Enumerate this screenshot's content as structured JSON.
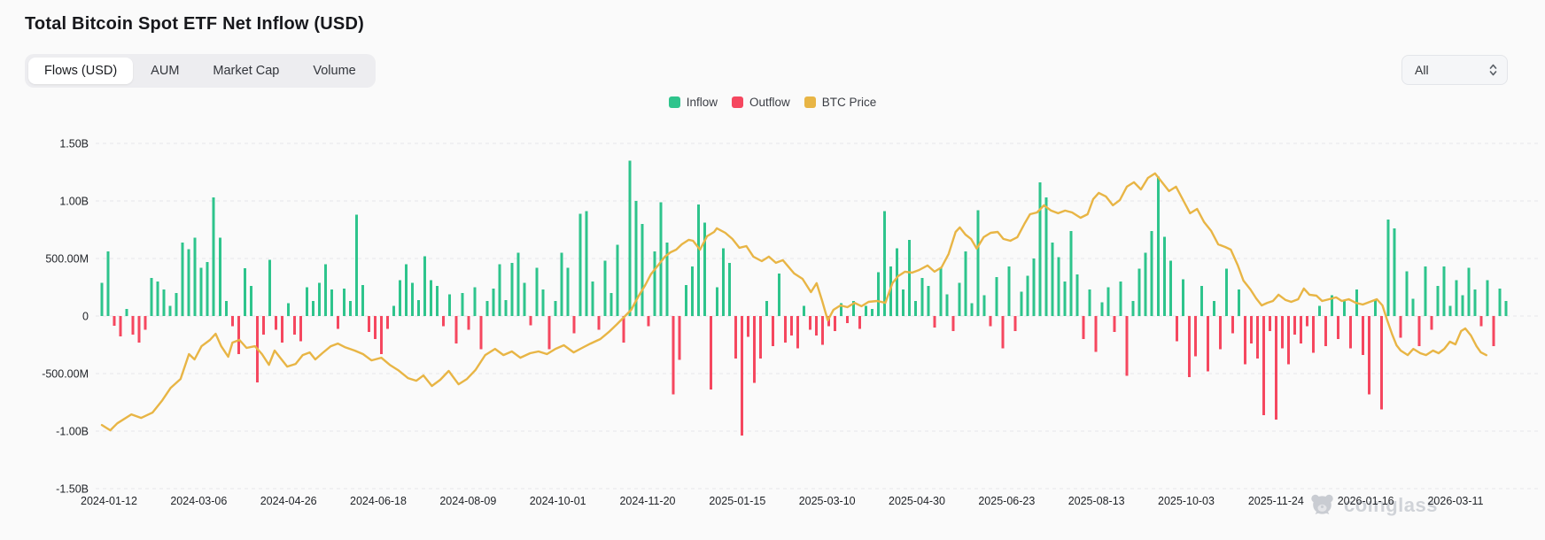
{
  "header": {
    "title": "Total Bitcoin Spot ETF Net Inflow (USD)"
  },
  "toolbar": {
    "tabs": [
      {
        "label": "Flows (USD)",
        "active": true
      },
      {
        "label": "AUM",
        "active": false
      },
      {
        "label": "Market Cap",
        "active": false
      },
      {
        "label": "Volume",
        "active": false
      }
    ],
    "range_select": {
      "value": "All",
      "icon": "unfold-chevrons-icon"
    }
  },
  "legend": [
    {
      "label": "Inflow",
      "color": "#2ec48c"
    },
    {
      "label": "Outflow",
      "color": "#f5475f"
    },
    {
      "label": "BTC Price",
      "color": "#e8b545"
    }
  ],
  "watermark": {
    "brand": "coinglass",
    "icon": "bear-icon"
  },
  "chart_data": {
    "type": "bar",
    "title": "Total Bitcoin Spot ETF Net Inflow (USD)",
    "values_unit": "millions USD",
    "grid": "dashed",
    "legend_position": "top-center",
    "y_axis": {
      "tick_labels": [
        "1.50B",
        "1.00B",
        "500.00M",
        "0",
        "-500.00M",
        "-1.00B",
        "-1.50B"
      ],
      "tick_values_m": [
        1500,
        1000,
        500,
        0,
        -500,
        -1000,
        -1500
      ],
      "range_m": [
        -1500,
        1500
      ]
    },
    "x_axis": {
      "tick_labels": [
        "2024-01-12",
        "2024-03-06",
        "2024-04-26",
        "2024-06-18",
        "2024-08-09",
        "2024-10-01",
        "2024-11-20",
        "2025-01-15",
        "2025-03-10",
        "2025-04-30",
        "2025-06-23",
        "2025-08-13",
        "2025-10-03",
        "2025-11-24",
        "2026-01-16",
        "2026-03-11"
      ]
    },
    "series": [
      {
        "name": "Inflow",
        "type": "bar",
        "color": "#2ec48c"
      },
      {
        "name": "Outflow",
        "type": "bar",
        "color": "#f5475f"
      },
      {
        "name": "BTC Price",
        "type": "line",
        "color": "#e8b545",
        "axis": "hidden-right"
      }
    ],
    "net_flows_m": [
      290,
      560,
      -85,
      -175,
      60,
      -160,
      -230,
      -120,
      330,
      300,
      230,
      90,
      200,
      640,
      580,
      680,
      420,
      470,
      1030,
      680,
      130,
      -90,
      -330,
      415,
      260,
      -575,
      -160,
      490,
      -120,
      -230,
      110,
      -160,
      -220,
      250,
      130,
      290,
      450,
      230,
      -110,
      240,
      130,
      880,
      270,
      -140,
      -200,
      -330,
      -110,
      90,
      310,
      450,
      290,
      140,
      520,
      310,
      260,
      -90,
      190,
      -240,
      200,
      -120,
      250,
      -290,
      130,
      240,
      450,
      140,
      460,
      550,
      290,
      -80,
      420,
      230,
      -290,
      130,
      550,
      420,
      -150,
      890,
      910,
      300,
      -120,
      480,
      200,
      620,
      -230,
      1350,
      1000,
      800,
      -90,
      560,
      990,
      640,
      -680,
      -380,
      270,
      430,
      970,
      810,
      -640,
      250,
      590,
      460,
      -370,
      -1040,
      -180,
      -580,
      -370,
      130,
      -260,
      370,
      -230,
      -170,
      -280,
      90,
      -120,
      -170,
      -250,
      -90,
      -130,
      110,
      -60,
      130,
      -110,
      90,
      60,
      380,
      910,
      430,
      590,
      230,
      660,
      130,
      330,
      260,
      -100,
      420,
      190,
      -130,
      290,
      560,
      110,
      920,
      180,
      -90,
      340,
      -280,
      430,
      -130,
      210,
      350,
      500,
      1160,
      1030,
      640,
      510,
      300,
      740,
      360,
      -200,
      230,
      -310,
      120,
      250,
      -140,
      300,
      -520,
      130,
      410,
      550,
      740,
      1210,
      690,
      480,
      -220,
      320,
      -530,
      -350,
      260,
      -480,
      130,
      -290,
      410,
      -150,
      230,
      -420,
      -240,
      -370,
      -860,
      -130,
      -900,
      -280,
      -420,
      -160,
      -240,
      -90,
      -320,
      90,
      -260,
      180,
      -200,
      130,
      -280,
      230,
      -340,
      -680,
      140,
      -810,
      840,
      760,
      -190,
      390,
      150,
      -260,
      430,
      -120,
      260,
      430,
      90,
      310,
      180,
      420,
      230,
      -90,
      310,
      -260,
      240,
      130
    ],
    "btc_price_line_points": [
      [
        0,
        -947
      ],
      [
        0.6,
        -993
      ],
      [
        1.1,
        -932
      ],
      [
        2.1,
        -855
      ],
      [
        2.8,
        -885
      ],
      [
        3.6,
        -839
      ],
      [
        4.3,
        -732
      ],
      [
        4.9,
        -624
      ],
      [
        5.6,
        -547
      ],
      [
        6.2,
        -331
      ],
      [
        6.6,
        -377
      ],
      [
        7.1,
        -262
      ],
      [
        7.7,
        -208
      ],
      [
        8.1,
        -154
      ],
      [
        8.5,
        -262
      ],
      [
        9.0,
        -354
      ],
      [
        9.3,
        -231
      ],
      [
        9.8,
        -208
      ],
      [
        10.3,
        -277
      ],
      [
        10.9,
        -262
      ],
      [
        11.4,
        -331
      ],
      [
        11.9,
        -424
      ],
      [
        12.3,
        -300
      ],
      [
        12.7,
        -362
      ],
      [
        13.2,
        -439
      ],
      [
        13.8,
        -416
      ],
      [
        14.3,
        -339
      ],
      [
        14.8,
        -316
      ],
      [
        15.2,
        -377
      ],
      [
        15.7,
        -323
      ],
      [
        16.3,
        -262
      ],
      [
        16.8,
        -239
      ],
      [
        17.3,
        -270
      ],
      [
        18.0,
        -300
      ],
      [
        18.6,
        -331
      ],
      [
        19.2,
        -385
      ],
      [
        19.9,
        -362
      ],
      [
        20.5,
        -424
      ],
      [
        21.1,
        -470
      ],
      [
        21.8,
        -539
      ],
      [
        22.4,
        -562
      ],
      [
        22.9,
        -516
      ],
      [
        23.5,
        -608
      ],
      [
        24.1,
        -554
      ],
      [
        24.7,
        -477
      ],
      [
        25.4,
        -593
      ],
      [
        26.0,
        -547
      ],
      [
        26.6,
        -470
      ],
      [
        27.3,
        -339
      ],
      [
        28.0,
        -285
      ],
      [
        28.6,
        -339
      ],
      [
        29.2,
        -308
      ],
      [
        29.8,
        -362
      ],
      [
        30.5,
        -323
      ],
      [
        31.1,
        -308
      ],
      [
        31.7,
        -331
      ],
      [
        32.3,
        -285
      ],
      [
        32.9,
        -254
      ],
      [
        33.6,
        -316
      ],
      [
        34.2,
        -277
      ],
      [
        34.8,
        -239
      ],
      [
        35.5,
        -200
      ],
      [
        36.1,
        -139
      ],
      [
        36.7,
        -69
      ],
      [
        37.2,
        -8
      ],
      [
        37.7,
        54
      ],
      [
        38.2,
        169
      ],
      [
        38.7,
        269
      ],
      [
        39.1,
        362
      ],
      [
        39.6,
        439
      ],
      [
        40.1,
        516
      ],
      [
        40.5,
        554
      ],
      [
        40.9,
        577
      ],
      [
        41.3,
        623
      ],
      [
        41.8,
        662
      ],
      [
        42.1,
        654
      ],
      [
        42.6,
        577
      ],
      [
        43.1,
        693
      ],
      [
        43.6,
        731
      ],
      [
        43.8,
        762
      ],
      [
        44.4,
        723
      ],
      [
        44.9,
        670
      ],
      [
        45.4,
        593
      ],
      [
        45.9,
        608
      ],
      [
        46.4,
        516
      ],
      [
        47.0,
        477
      ],
      [
        47.5,
        516
      ],
      [
        48.0,
        462
      ],
      [
        48.5,
        485
      ],
      [
        49.3,
        370
      ],
      [
        49.9,
        323
      ],
      [
        50.5,
        208
      ],
      [
        50.9,
        285
      ],
      [
        51.3,
        131
      ],
      [
        51.7,
        -38
      ],
      [
        52.1,
        54
      ],
      [
        52.6,
        92
      ],
      [
        53.1,
        77
      ],
      [
        53.6,
        115
      ],
      [
        54.1,
        85
      ],
      [
        54.6,
        123
      ],
      [
        55.2,
        131
      ],
      [
        55.8,
        115
      ],
      [
        56.3,
        285
      ],
      [
        56.7,
        346
      ],
      [
        57.2,
        385
      ],
      [
        57.7,
        377
      ],
      [
        58.2,
        400
      ],
      [
        58.8,
        439
      ],
      [
        59.3,
        385
      ],
      [
        59.8,
        423
      ],
      [
        60.3,
        539
      ],
      [
        60.8,
        731
      ],
      [
        61.1,
        770
      ],
      [
        61.5,
        708
      ],
      [
        61.9,
        670
      ],
      [
        62.3,
        585
      ],
      [
        62.8,
        685
      ],
      [
        63.3,
        723
      ],
      [
        63.8,
        731
      ],
      [
        64.2,
        670
      ],
      [
        64.7,
        654
      ],
      [
        65.2,
        685
      ],
      [
        65.7,
        800
      ],
      [
        66.1,
        885
      ],
      [
        66.6,
        900
      ],
      [
        67.1,
        962
      ],
      [
        67.6,
        916
      ],
      [
        68.1,
        893
      ],
      [
        68.6,
        916
      ],
      [
        69.1,
        900
      ],
      [
        69.7,
        854
      ],
      [
        70.2,
        885
      ],
      [
        70.6,
        1016
      ],
      [
        71.0,
        1070
      ],
      [
        71.5,
        1039
      ],
      [
        72.0,
        962
      ],
      [
        72.5,
        1008
      ],
      [
        73.0,
        1124
      ],
      [
        73.5,
        1162
      ],
      [
        74.0,
        1100
      ],
      [
        74.5,
        1200
      ],
      [
        75.0,
        1239
      ],
      [
        75.5,
        1162
      ],
      [
        76.0,
        1085
      ],
      [
        76.5,
        1124
      ],
      [
        77.0,
        1008
      ],
      [
        77.5,
        893
      ],
      [
        78.0,
        931
      ],
      [
        78.5,
        816
      ],
      [
        79.0,
        739
      ],
      [
        79.5,
        623
      ],
      [
        80.0,
        600
      ],
      [
        80.4,
        577
      ],
      [
        80.9,
        439
      ],
      [
        81.3,
        308
      ],
      [
        81.8,
        231
      ],
      [
        82.2,
        154
      ],
      [
        82.6,
        92
      ],
      [
        83.0,
        115
      ],
      [
        83.4,
        131
      ],
      [
        83.8,
        185
      ],
      [
        84.3,
        139
      ],
      [
        84.7,
        123
      ],
      [
        85.2,
        146
      ],
      [
        85.6,
        239
      ],
      [
        86.0,
        185
      ],
      [
        86.5,
        177
      ],
      [
        86.9,
        131
      ],
      [
        87.4,
        146
      ],
      [
        87.9,
        162
      ],
      [
        88.3,
        131
      ],
      [
        88.8,
        146
      ],
      [
        89.3,
        115
      ],
      [
        89.8,
        100
      ],
      [
        90.3,
        123
      ],
      [
        90.8,
        146
      ],
      [
        91.2,
        92
      ],
      [
        91.5,
        -23
      ],
      [
        91.9,
        -162
      ],
      [
        92.2,
        -254
      ],
      [
        92.5,
        -300
      ],
      [
        93.0,
        -339
      ],
      [
        93.4,
        -285
      ],
      [
        93.9,
        -323
      ],
      [
        94.3,
        -339
      ],
      [
        94.8,
        -300
      ],
      [
        95.2,
        -323
      ],
      [
        95.6,
        -285
      ],
      [
        96.0,
        -223
      ],
      [
        96.4,
        -246
      ],
      [
        96.8,
        -131
      ],
      [
        97.1,
        -108
      ],
      [
        97.5,
        -169
      ],
      [
        97.9,
        -262
      ],
      [
        98.2,
        -315
      ],
      [
        98.6,
        -340
      ]
    ]
  }
}
